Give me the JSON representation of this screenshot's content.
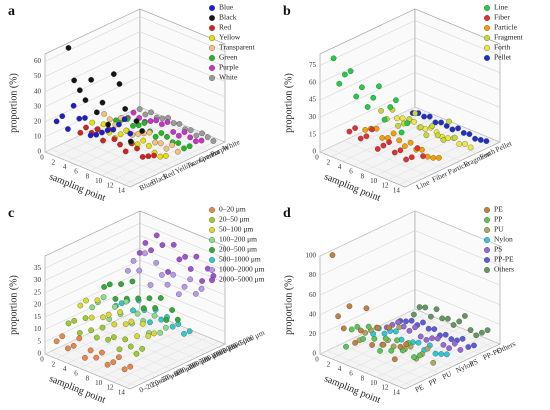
{
  "chart_data": [
    {
      "type": "scatter3d",
      "label": "a",
      "zlabel": "proportion (%)",
      "xlabel": "sampling point",
      "x": [
        1,
        2,
        3,
        4,
        5,
        6,
        7,
        8,
        9,
        10,
        11,
        12,
        13,
        14
      ],
      "xlim": [
        0,
        15
      ],
      "xticks": [
        0,
        2,
        4,
        6,
        8,
        10,
        12,
        14
      ],
      "zlim": [
        0,
        65
      ],
      "zticks": [
        0,
        10,
        20,
        30,
        40,
        50,
        60
      ],
      "series": [
        {
          "name": "Blue",
          "color": "#1f1fc8",
          "values": [
            20,
            25,
            18,
            35,
            28,
            30,
            20,
            22,
            25,
            28,
            30,
            35,
            40,
            32
          ]
        },
        {
          "name": "Black",
          "color": "#151515",
          "values": [
            65,
            45,
            40,
            35,
            50,
            30,
            38,
            25,
            60,
            55,
            40,
            20,
            35,
            30
          ]
        },
        {
          "name": "Red",
          "color": "#d42020",
          "values": [
            5,
            10,
            8,
            12,
            6,
            15,
            10,
            8,
            5,
            12,
            10,
            6,
            8,
            10
          ]
        },
        {
          "name": "Yellow",
          "color": "#e8e000",
          "values": [
            8,
            5,
            10,
            6,
            4,
            8,
            12,
            5,
            6,
            10,
            8,
            5,
            4,
            6
          ]
        },
        {
          "name": "Transparent",
          "color": "#f5c27a",
          "values": [
            10,
            8,
            6,
            12,
            5,
            4,
            6,
            8,
            10,
            5,
            6,
            4,
            8,
            5
          ]
        },
        {
          "name": "Green",
          "color": "#22b822",
          "values": [
            2,
            4,
            6,
            3,
            5,
            8,
            4,
            2,
            6,
            5,
            3,
            4,
            2,
            5
          ]
        },
        {
          "name": "Purple",
          "color": "#c832c8",
          "values": [
            0,
            5,
            3,
            2,
            4,
            6,
            5,
            8,
            3,
            2,
            6,
            4,
            3,
            5
          ]
        },
        {
          "name": "White",
          "color": "#9a9a9a",
          "values": [
            2,
            0,
            3,
            1,
            2,
            4,
            2,
            3,
            1,
            2,
            0,
            3,
            2,
            1
          ]
        }
      ]
    },
    {
      "type": "scatter3d",
      "label": "b",
      "zlabel": "proportion (%)",
      "xlabel": "sampling point",
      "x": [
        1,
        2,
        3,
        4,
        5,
        6,
        7,
        8,
        9,
        10,
        11,
        12,
        13,
        14
      ],
      "xlim": [
        0,
        15
      ],
      "xticks": [
        0,
        2,
        4,
        6,
        8,
        10,
        12,
        14
      ],
      "zlim": [
        0,
        85
      ],
      "zticks": [
        0,
        15,
        30,
        45,
        60,
        75
      ],
      "series": [
        {
          "name": "Line",
          "color": "#22cc44",
          "values": [
            80,
            60,
            70,
            75,
            55,
            65,
            50,
            60,
            72,
            45,
            58,
            66,
            40,
            50
          ]
        },
        {
          "name": "Fiber",
          "color": "#e03030",
          "values": [
            10,
            15,
            8,
            12,
            20,
            5,
            10,
            15,
            8,
            12,
            6,
            10,
            20,
            15
          ]
        },
        {
          "name": "Particle",
          "color": "#f5a000",
          "values": [
            5,
            8,
            10,
            4,
            6,
            12,
            8,
            5,
            10,
            6,
            8,
            4,
            5,
            7
          ]
        },
        {
          "name": "Fragment",
          "color": "#c8d83a",
          "values": [
            15,
            10,
            20,
            8,
            12,
            18,
            25,
            15,
            10,
            20,
            14,
            12,
            30,
            18
          ]
        },
        {
          "name": "Forth",
          "color": "#f0e840",
          "values": [
            2,
            4,
            3,
            5,
            2,
            3,
            6,
            4,
            2,
            3,
            5,
            2,
            4,
            3
          ]
        },
        {
          "name": "Pellet",
          "color": "#2030c0",
          "values": [
            0,
            2,
            1,
            3,
            0,
            2,
            1,
            0,
            3,
            1,
            2,
            0,
            1,
            2
          ]
        }
      ]
    },
    {
      "type": "scatter3d",
      "label": "c",
      "zlabel": "proportion (%)",
      "xlabel": "sampling point",
      "x": [
        1,
        2,
        3,
        4,
        5,
        6,
        7,
        8,
        9,
        10,
        11,
        12,
        13,
        14
      ],
      "xlim": [
        0,
        15
      ],
      "xticks": [
        0,
        2,
        4,
        6,
        8,
        10,
        12,
        14
      ],
      "zlim": [
        0,
        40
      ],
      "zticks": [
        0,
        5,
        10,
        15,
        20,
        25,
        30,
        35
      ],
      "series": [
        {
          "name": "0–20 μm",
          "color": "#e8874a",
          "values": [
            5,
            8,
            4,
            6,
            10,
            3,
            7,
            5,
            8,
            4,
            6,
            9,
            5,
            7
          ]
        },
        {
          "name": "20–50  μm",
          "color": "#9ccc30",
          "values": [
            10,
            12,
            8,
            15,
            11,
            9,
            14,
            10,
            12,
            8,
            13,
            11,
            9,
            12
          ]
        },
        {
          "name": "50–100 μm",
          "color": "#dcd830",
          "values": [
            15,
            18,
            12,
            20,
            14,
            16,
            13,
            19,
            15,
            17,
            12,
            18,
            14,
            16
          ]
        },
        {
          "name": "100–200 μm",
          "color": "#88dd88",
          "values": [
            12,
            15,
            18,
            10,
            16,
            14,
            20,
            12,
            17,
            15,
            11,
            19,
            13,
            16
          ]
        },
        {
          "name": "200–500 μm",
          "color": "#33aa33",
          "values": [
            18,
            20,
            15,
            22,
            17,
            25,
            19,
            16,
            21,
            18,
            23,
            15,
            20,
            17
          ]
        },
        {
          "name": "500–1000 μm",
          "color": "#33c8c8",
          "values": [
            8,
            10,
            12,
            9,
            14,
            11,
            7,
            13,
            10,
            12,
            9,
            11,
            8,
            10
          ]
        },
        {
          "name": "1000–2000 μm",
          "color": "#b898e8",
          "values": [
            20,
            25,
            22,
            30,
            18,
            28,
            24,
            21,
            26,
            19,
            23,
            27,
            22,
            25
          ]
        },
        {
          "name": "2000–5000 μm",
          "color": "#a050d0",
          "values": [
            25,
            30,
            28,
            35,
            32,
            22,
            34,
            29,
            31,
            27,
            33,
            24,
            30,
            28
          ]
        }
      ]
    },
    {
      "type": "scatter3d",
      "label": "d",
      "zlabel": "proportion (%)",
      "xlabel": "sampling point",
      "x": [
        1,
        2,
        3,
        4,
        5,
        6,
        7,
        8,
        9,
        10,
        11,
        12,
        13,
        14
      ],
      "xlim": [
        0,
        15
      ],
      "xticks": [
        0,
        2,
        4,
        6,
        8,
        10,
        12,
        14
      ],
      "zlim": [
        0,
        100
      ],
      "zticks": [
        0,
        20,
        40,
        60,
        80,
        100
      ],
      "series": [
        {
          "name": "PE",
          "color": "#c08040",
          "values": [
            100,
            40,
            30,
            55,
            20,
            35,
            60,
            25,
            45,
            30,
            50,
            20,
            35,
            40
          ]
        },
        {
          "name": "PP",
          "color": "#55c855",
          "values": [
            0,
            20,
            25,
            15,
            30,
            20,
            10,
            25,
            15,
            28,
            20,
            30,
            18,
            22
          ]
        },
        {
          "name": "PU",
          "color": "#a8a860",
          "values": [
            0,
            10,
            15,
            20,
            5,
            12,
            8,
            30,
            10,
            15,
            5,
            12,
            20,
            8
          ]
        },
        {
          "name": "Nylon",
          "color": "#30c8d8",
          "values": [
            0,
            8,
            5,
            10,
            12,
            6,
            4,
            8,
            10,
            5,
            12,
            6,
            8,
            10
          ]
        },
        {
          "name": "PS",
          "color": "#9868d8",
          "values": [
            0,
            5,
            10,
            8,
            6,
            12,
            5,
            4,
            8,
            10,
            6,
            5,
            12,
            8
          ]
        },
        {
          "name": "PP-PE",
          "color": "#5c5cd8",
          "values": [
            0,
            2,
            5,
            3,
            8,
            4,
            6,
            2,
            5,
            3,
            4,
            8,
            2,
            6
          ]
        },
        {
          "name": "Others",
          "color": "#609860",
          "values": [
            0,
            10,
            12,
            5,
            15,
            8,
            10,
            6,
            12,
            20,
            8,
            5,
            10,
            15
          ]
        }
      ]
    }
  ]
}
